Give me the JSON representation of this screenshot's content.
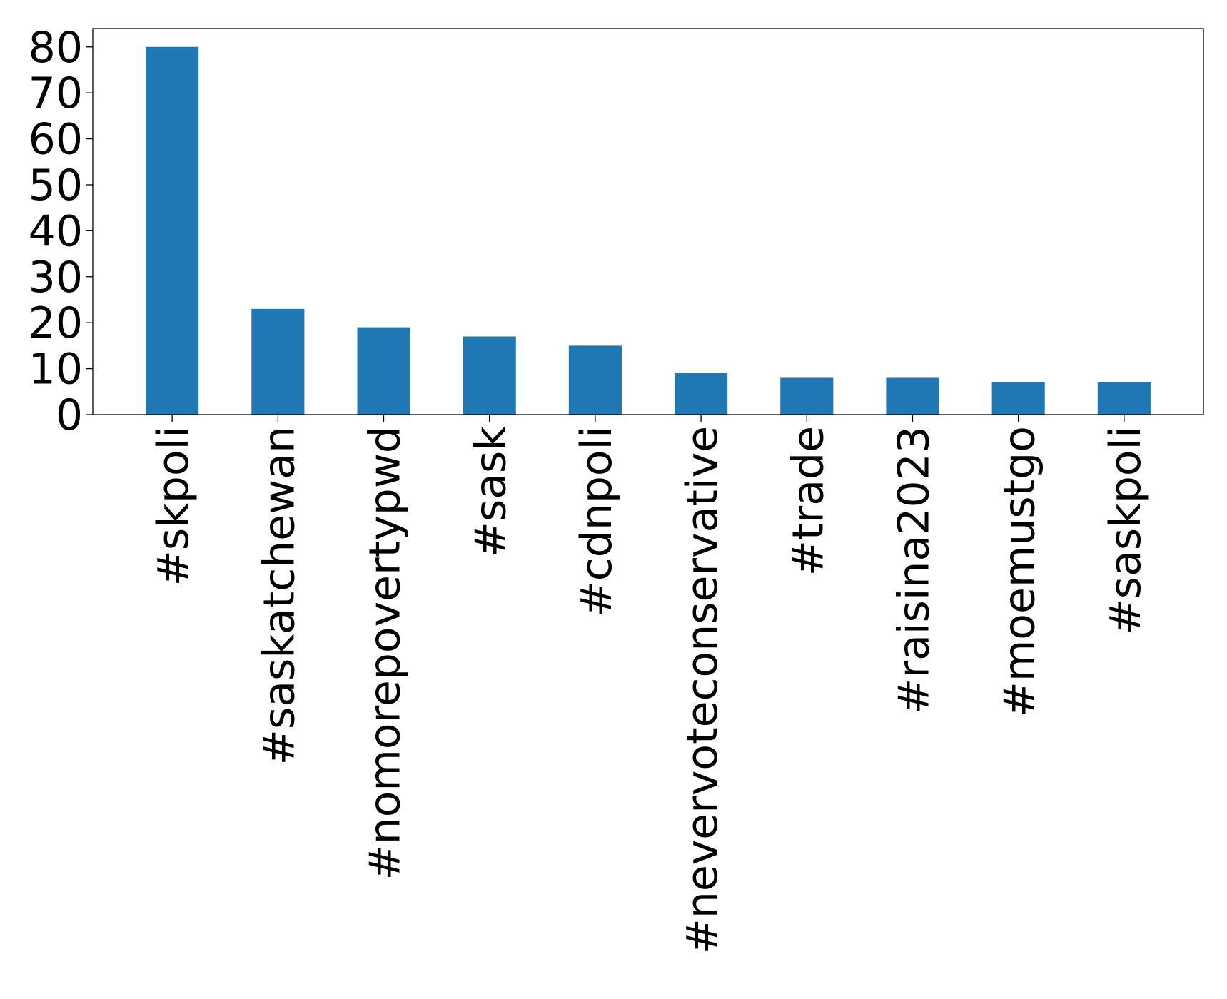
{
  "chart_data": {
    "type": "bar",
    "title": "",
    "xlabel": "",
    "ylabel": "",
    "categories": [
      "#skpoli",
      "#saskatchewan",
      "#nomorepovertypwd",
      "#sask",
      "#cdnpoli",
      "#nevervoteconservative",
      "#trade",
      "#raisina2023",
      "#moemustgo",
      "#saskpoli"
    ],
    "values": [
      80,
      23,
      19,
      17,
      15,
      9,
      8,
      8,
      7,
      7
    ],
    "ylim": [
      0,
      84
    ],
    "yticks": [
      0,
      10,
      20,
      30,
      40,
      50,
      60,
      70,
      80
    ],
    "bar_color": "#1f77b4",
    "grid": false,
    "legend": "none"
  }
}
